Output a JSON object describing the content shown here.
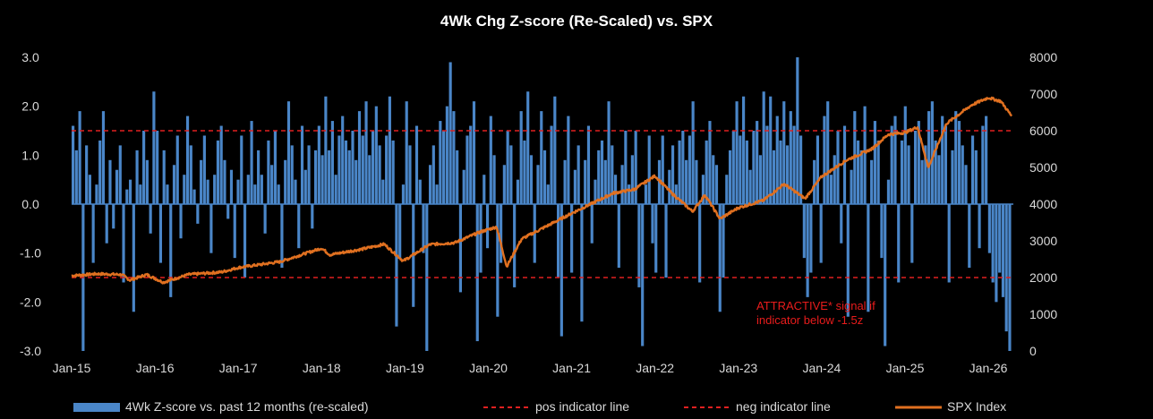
{
  "chart_data": {
    "type": "bar+line",
    "title": "4Wk Chg Z-score (Re-Scaled) vs. SPX",
    "y_left": {
      "min": -3.0,
      "max": 3.0,
      "ticks": [
        "3.0",
        "2.0",
        "1.0",
        "0.0",
        "-1.0",
        "-2.0",
        "-3.0"
      ]
    },
    "y_right": {
      "min": 0,
      "max": 8000,
      "ticks": [
        "8000",
        "7000",
        "6000",
        "5000",
        "4000",
        "3000",
        "2000",
        "1000",
        "0"
      ]
    },
    "x_ticks": [
      "Jan-15",
      "Jan-16",
      "Jan-17",
      "Jan-18",
      "Jan-19",
      "Jan-20",
      "Jan-21",
      "Jan-22",
      "Jan-23",
      "Jan-24",
      "Jan-25",
      "Jan-26"
    ],
    "x_range": [
      2015.0,
      2026.3
    ],
    "pos_indicator": 1.5,
    "neg_indicator": -1.5,
    "spx_series": [
      [
        2015.0,
        2050
      ],
      [
        2015.3,
        2100
      ],
      [
        2015.6,
        2080
      ],
      [
        2015.7,
        1930
      ],
      [
        2015.9,
        2080
      ],
      [
        2016.1,
        1870
      ],
      [
        2016.4,
        2080
      ],
      [
        2016.8,
        2150
      ],
      [
        2017.0,
        2270
      ],
      [
        2017.5,
        2430
      ],
      [
        2018.0,
        2800
      ],
      [
        2018.1,
        2620
      ],
      [
        2018.5,
        2780
      ],
      [
        2018.75,
        2910
      ],
      [
        2018.98,
        2450
      ],
      [
        2019.3,
        2900
      ],
      [
        2019.6,
        2950
      ],
      [
        2019.9,
        3240
      ],
      [
        2020.1,
        3380
      ],
      [
        2020.22,
        2300
      ],
      [
        2020.4,
        3050
      ],
      [
        2020.7,
        3400
      ],
      [
        2021.0,
        3750
      ],
      [
        2021.5,
        4300
      ],
      [
        2021.75,
        4400
      ],
      [
        2022.0,
        4770
      ],
      [
        2022.2,
        4300
      ],
      [
        2022.45,
        3800
      ],
      [
        2022.6,
        4250
      ],
      [
        2022.78,
        3600
      ],
      [
        2023.0,
        3900
      ],
      [
        2023.3,
        4100
      ],
      [
        2023.55,
        4550
      ],
      [
        2023.8,
        4150
      ],
      [
        2024.0,
        4750
      ],
      [
        2024.3,
        5200
      ],
      [
        2024.6,
        5500
      ],
      [
        2024.8,
        5900
      ],
      [
        2025.0,
        5950
      ],
      [
        2025.15,
        6100
      ],
      [
        2025.28,
        5000
      ],
      [
        2025.5,
        6200
      ],
      [
        2025.8,
        6700
      ],
      [
        2026.0,
        6900
      ],
      [
        2026.15,
        6800
      ],
      [
        2026.28,
        6400
      ]
    ],
    "zscore_bars": [
      1.6,
      1.1,
      1.9,
      -3.0,
      1.2,
      0.6,
      -1.2,
      0.4,
      1.3,
      1.9,
      -0.8,
      0.9,
      -0.5,
      0.7,
      1.2,
      -1.6,
      0.3,
      0.5,
      -2.2,
      1.1,
      0.4,
      1.5,
      0.9,
      -0.6,
      2.3,
      1.5,
      -1.2,
      1.1,
      0.4,
      -1.9,
      0.8,
      1.4,
      -0.7,
      0.6,
      1.8,
      1.2,
      0.3,
      -0.4,
      0.9,
      1.4,
      0.5,
      -1.0,
      0.6,
      1.3,
      1.6,
      0.9,
      -0.3,
      0.7,
      -1.1,
      0.5,
      1.4,
      -1.5,
      0.6,
      1.7,
      0.4,
      1.1,
      0.6,
      -0.6,
      1.3,
      0.8,
      1.5,
      0.4,
      -1.3,
      0.9,
      2.1,
      1.2,
      0.5,
      -0.9,
      1.6,
      0.7,
      1.2,
      -0.5,
      1.1,
      1.6,
      1.0,
      2.2,
      1.1,
      1.7,
      0.6,
      1.4,
      1.8,
      1.3,
      1.1,
      1.5,
      0.9,
      1.9,
      1.4,
      2.1,
      1.0,
      1.5,
      2.0,
      1.2,
      0.5,
      1.4,
      2.2,
      1.3,
      -2.5,
      -1.1,
      0.4,
      2.1,
      1.2,
      -2.1,
      1.6,
      0.5,
      -1.0,
      -3.0,
      0.8,
      1.2,
      0.4,
      1.7,
      1.5,
      2.0,
      2.9,
      1.9,
      1.1,
      -1.8,
      0.7,
      1.4,
      1.6,
      2.1,
      -2.8,
      -1.4,
      0.6,
      -0.9,
      1.8,
      1.0,
      -2.3,
      -1.2,
      0.8,
      1.5,
      1.2,
      -1.7,
      0.5,
      1.9,
      1.3,
      2.3,
      1.0,
      -1.2,
      0.8,
      1.9,
      1.1,
      0.4,
      1.6,
      2.2,
      -1.5,
      -2.7,
      0.9,
      1.8,
      -1.4,
      0.7,
      1.2,
      -2.4,
      0.9,
      1.6,
      -0.8,
      0.5,
      1.1,
      1.3,
      0.9,
      2.1,
      1.2,
      0.6,
      -1.3,
      0.8,
      1.5,
      0.4,
      1.0,
      1.5,
      -1.7,
      -2.9,
      0.4,
      1.4,
      -0.8,
      -1.4,
      0.9,
      1.4,
      -1.5,
      0.7,
      1.2,
      0.4,
      1.3,
      1.5,
      0.9,
      1.4,
      2.1,
      0.9,
      -1.6,
      0.6,
      1.3,
      1.7,
      1.0,
      0.8,
      -2.2,
      -1.5,
      0.6,
      1.1,
      1.5,
      2.1,
      1.4,
      2.2,
      1.3,
      0.7,
      1.5,
      1.7,
      1.0,
      2.3,
      1.6,
      2.2,
      1.1,
      1.8,
      1.3,
      2.1,
      1.2,
      1.9,
      1.6,
      3.0,
      1.4,
      -1.1,
      -1.9,
      -1.4,
      0.9,
      1.4,
      -1.2,
      1.8,
      2.1,
      0.6,
      1.0,
      1.5,
      -0.8,
      1.6,
      -2.3,
      0.7,
      1.9,
      1.3,
      1.1,
      2.0,
      -2.2,
      0.9,
      1.7,
      1.3,
      -1.1,
      -2.9,
      0.5,
      1.6,
      1.8,
      -1.6,
      1.3,
      2.0,
      1.2,
      -1.2,
      1.5,
      1.7,
      0.9,
      1.2,
      1.9,
      2.1,
      1.3,
      1.0,
      1.8,
      1.6,
      -1.6,
      1.1,
      1.9,
      1.7,
      1.2,
      0.8,
      -1.3,
      1.4,
      1.1,
      -0.9,
      1.6,
      1.8,
      -1.0,
      -1.6,
      -2.0,
      -1.4,
      -1.9,
      -2.6,
      -3.0
    ],
    "annotation": {
      "line1": "ATTRACTIVE* signal if",
      "line2": "indicator below -1.5z"
    },
    "legend": {
      "bars": "4Wk Z-score vs. past 12 months (re-scaled)",
      "pos": "pos indicator line",
      "neg": "neg indicator line",
      "spx": "SPX Index"
    },
    "colors": {
      "bars": "#4a86c8",
      "indicator": "#e02020",
      "spx": "#e07020",
      "text": "#d9d9d9",
      "background": "#000000"
    }
  }
}
